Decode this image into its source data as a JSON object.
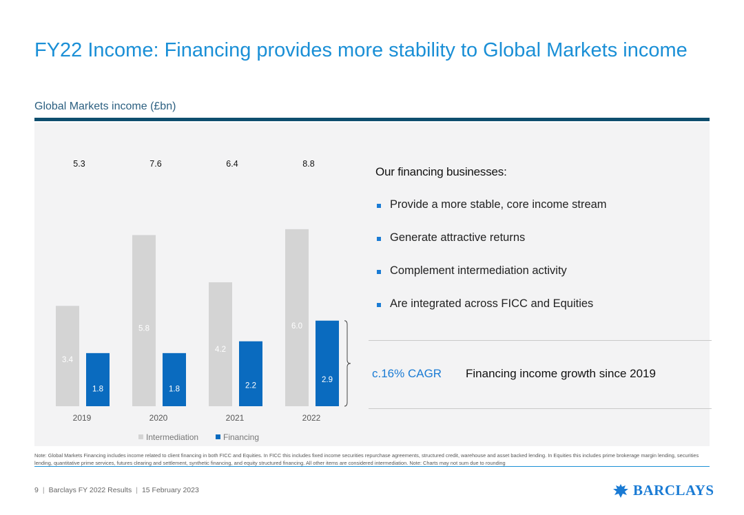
{
  "slide": {
    "title": "FY22 Income: Financing provides more stability to Global Markets income",
    "subtitle": "Global Markets income (£bn)"
  },
  "panel": {
    "heading": "Our financing businesses:",
    "points": [
      "Provide a more stable, core income stream",
      "Generate attractive returns",
      "Complement intermediation activity",
      "Are integrated across FICC and Equities"
    ],
    "cagr_value": "c.16% CAGR",
    "cagr_text": "Financing income growth since 2019"
  },
  "note": "Note: Global Markets Financing includes income related to client financing in both FICC and Equities. In FICC this includes fixed income securities repurchase agreements, structured credit, warehouse and asset backed lending. In Equities this includes prime brokerage margin lending, securities lending, quantitative prime services, futures clearing and settlement, synthetic financing, and equity structured financing. All other items are considered intermediation. Note: Charts may not sum due to rounding",
  "footer": {
    "page": "9",
    "doc": "Barclays FY 2022 Results",
    "date": "15 February 2023"
  },
  "logo": {
    "text": "BARCLAYS",
    "icon": "eagle-icon"
  },
  "colors": {
    "title": "#1a8fd6",
    "intermediation": "#d4d4d4",
    "financing": "#0a6bbf",
    "rule": "#0e4e6e"
  },
  "chart_data": {
    "type": "bar",
    "title": "",
    "categories": [
      "2019",
      "2020",
      "2021",
      "2022"
    ],
    "totals": [
      "5.3",
      "7.6",
      "6.4",
      "8.8"
    ],
    "series": [
      {
        "name": "Intermediation",
        "values": [
          3.4,
          5.8,
          4.2,
          6.0
        ]
      },
      {
        "name": "Financing",
        "values": [
          1.8,
          1.8,
          2.2,
          2.9
        ]
      }
    ],
    "ylim": [
      0,
      7.0
    ],
    "legend": "bottom",
    "grid": false,
    "bracket_on": "2022 Financing"
  }
}
